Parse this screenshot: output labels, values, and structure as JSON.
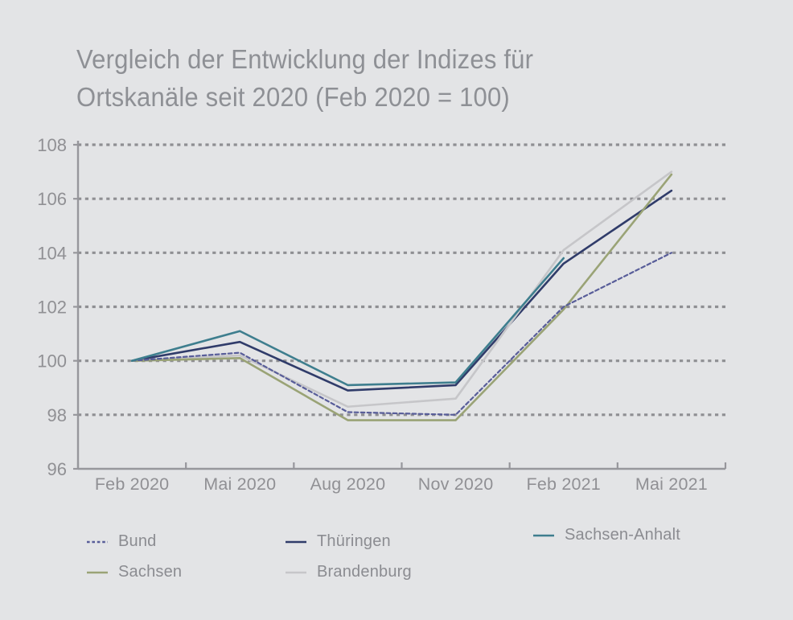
{
  "title": {
    "line1": "Vergleich der Entwicklung der Indizes für",
    "line2": "Ortskanäle seit 2020 (Feb 2020 = 100)"
  },
  "colors": {
    "background": "#e3e4e6",
    "grid_dots": "#8f8f93",
    "axis": "#97979c",
    "title_text": "#8e9095",
    "tick_text": "#909094",
    "legend_text": "#8b8c91"
  },
  "chart_data": {
    "type": "line",
    "title": "Vergleich der Entwicklung der Indizes für Ortskanäle seit 2020 (Feb 2020 = 100)",
    "categories": [
      "Feb 2020",
      "Mai 2020",
      "Aug 2020",
      "Nov 2020",
      "Feb 2021",
      "Mai 2021"
    ],
    "series": [
      {
        "name": "Bund",
        "color": "#585d99",
        "dashed": true,
        "values": [
          100,
          100.3,
          98.1,
          98.0,
          102.0,
          104.0
        ]
      },
      {
        "name": "Thüringen",
        "color": "#303c6a",
        "dashed": false,
        "values": [
          100,
          100.7,
          98.9,
          99.1,
          103.6,
          106.3
        ]
      },
      {
        "name": "Sachsen-Anhalt",
        "color": "#3e7e8e",
        "dashed": false,
        "values": [
          100,
          101.1,
          99.1,
          99.2,
          103.8,
          null
        ]
      },
      {
        "name": "Sachsen",
        "color": "#9aa376",
        "dashed": false,
        "values": [
          100,
          100.1,
          97.8,
          97.8,
          101.9,
          106.9
        ]
      },
      {
        "name": "Brandenburg",
        "color": "#c6c6c9",
        "dashed": false,
        "values": [
          100,
          100.2,
          98.3,
          98.6,
          104.1,
          107.0
        ]
      }
    ],
    "ylim": [
      96,
      108
    ],
    "yticks": [
      96,
      98,
      100,
      102,
      104,
      106,
      108
    ],
    "xlabel": "",
    "ylabel": "",
    "grid": "horizontal dotted",
    "legend_position": "bottom",
    "legend_rows": [
      [
        "Bund",
        "Thüringen",
        "Sachsen-Anhalt"
      ],
      [
        "Sachsen",
        "Brandenburg"
      ]
    ]
  }
}
